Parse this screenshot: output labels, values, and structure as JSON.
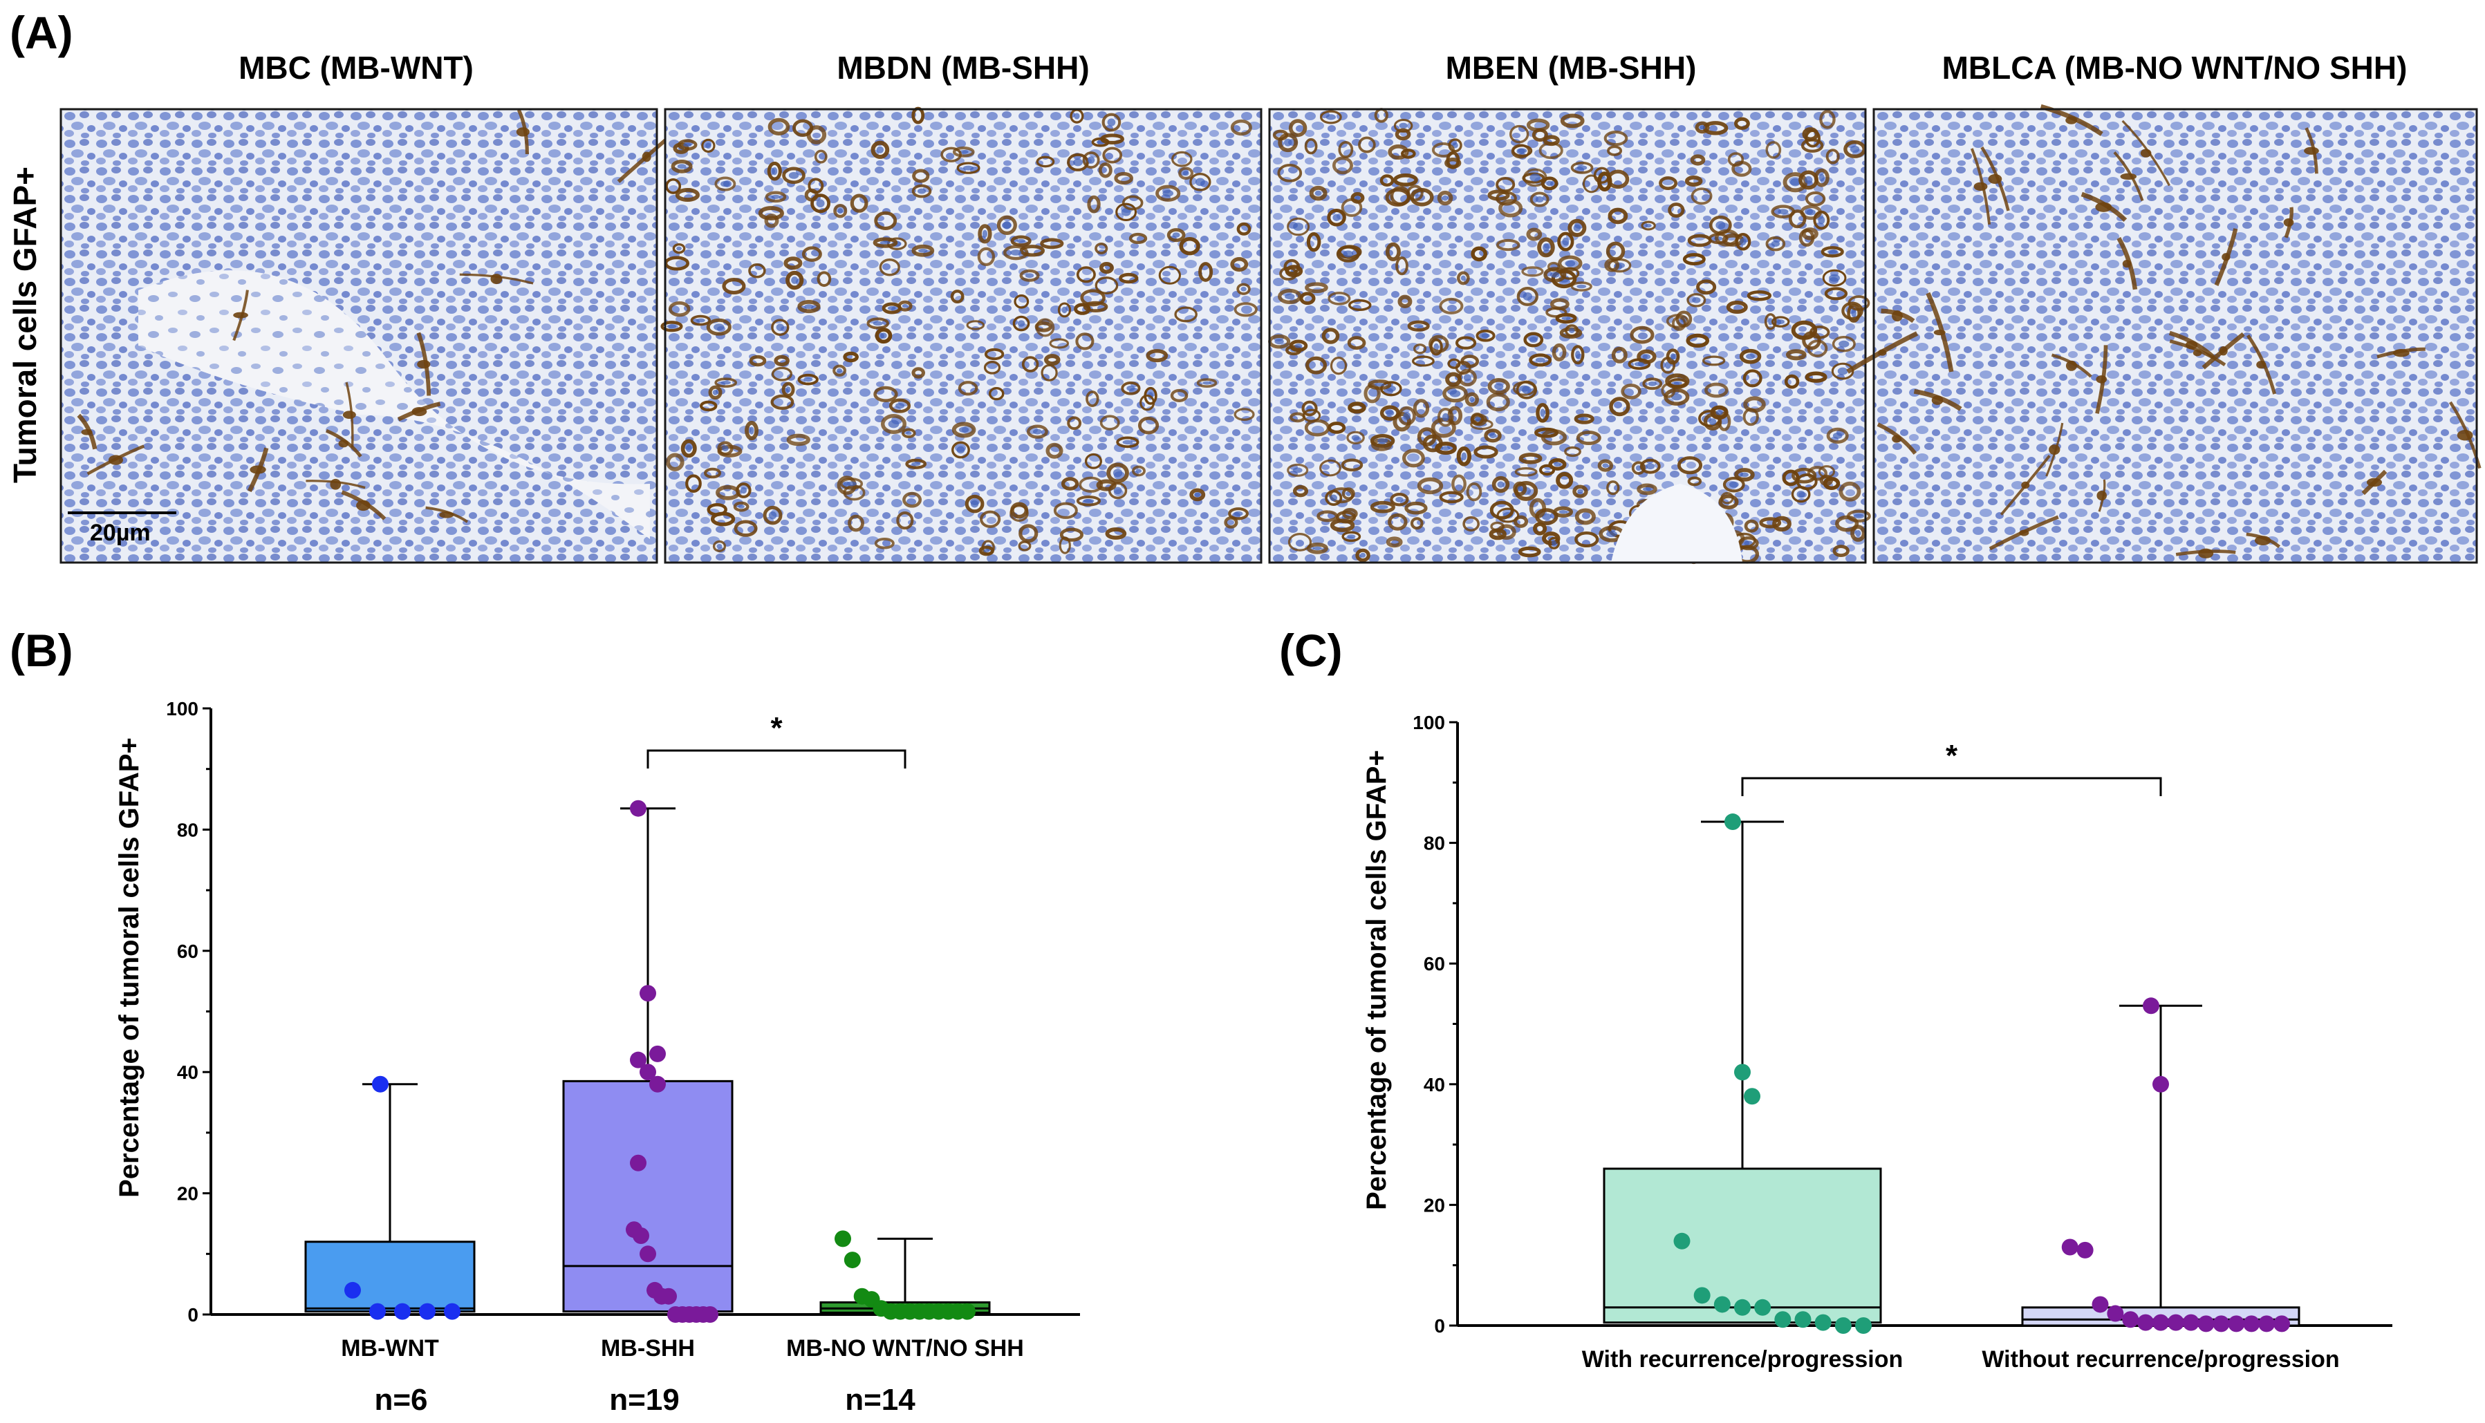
{
  "figure": {
    "panel_a": {
      "letter": "(A)",
      "row_label": "Tumoral cells GFAP+",
      "scale_bar": "20µm",
      "images": [
        {
          "title": "MBC (MB-WNT)",
          "staining": "sparse"
        },
        {
          "title": "MBDN (MB-SHH)",
          "staining": "dense"
        },
        {
          "title": "MBEN (MB-SHH)",
          "staining": "very-dense"
        },
        {
          "title": "MBLCA (MB-NO WNT/NO SHH)",
          "staining": "sparse-dendritic"
        }
      ]
    },
    "colors": {
      "background": "#ffffff",
      "tissue_bg": "#e7ebf4",
      "hematoxylin": "#5f78c8",
      "dab_stain": "#6e4310",
      "box_wnt": "#4a9cf0",
      "box_shh": "#8f8cf2",
      "box_nownt": "#2f9a2f",
      "dot_wnt": "#1a2ff0",
      "dot_shh": "#7a1a9a",
      "dot_nownt": "#138a13",
      "box_recur": "#b2e8d4",
      "box_norecur": "#d4d7f6",
      "dot_recur": "#1f9e78",
      "dot_norecur": "#7a1a9a"
    }
  },
  "chart_data": [
    {
      "panel": "(B)",
      "type": "box",
      "title": "",
      "xlabel": "",
      "ylabel": "Percentage of tumoral cells GFAP+",
      "ylim": [
        0,
        100
      ],
      "yticks": [
        "0",
        "20",
        "40",
        "60",
        "80",
        "100"
      ],
      "categories": [
        "MB-WNT",
        "MB-SHH",
        "MB-NO WNT/NO SHH"
      ],
      "sample_sizes": [
        "n=6",
        "n=19",
        "n=14"
      ],
      "boxes": [
        {
          "name": "MB-WNT",
          "min": 0,
          "q1": 0.5,
          "median": 1,
          "q3": 12,
          "max": 38,
          "points": [
            38,
            4,
            0.5,
            0.5,
            0.5,
            0.5
          ]
        },
        {
          "name": "MB-SHH",
          "min": 0,
          "q1": 0.5,
          "median": 8,
          "q3": 38.5,
          "max": 83.5,
          "points": [
            83.5,
            53,
            43,
            42,
            40,
            38,
            25,
            14,
            13,
            10,
            4,
            3,
            3,
            0,
            0,
            0,
            0,
            0,
            0
          ]
        },
        {
          "name": "MB-NO WNT/NO SHH",
          "min": 0,
          "q1": 0.3,
          "median": 1,
          "q3": 2,
          "max": 12.5,
          "points": [
            12.5,
            9,
            3,
            2.5,
            1,
            0.5,
            0.5,
            0.5,
            0.5,
            0.5,
            0.5,
            0.5,
            0.5,
            0.5
          ]
        }
      ],
      "significance": [
        {
          "from": "MB-SHH",
          "to": "MB-NO WNT/NO SHH",
          "label": "*"
        }
      ]
    },
    {
      "panel": "(C)",
      "type": "box",
      "title": "",
      "xlabel": "",
      "ylabel": "Percentage of tumoral cells GFAP+",
      "ylim": [
        0,
        100
      ],
      "yticks": [
        "0",
        "20",
        "40",
        "60",
        "80",
        "100"
      ],
      "categories": [
        "With recurrence/progression",
        "Without recurrence/progression"
      ],
      "boxes": [
        {
          "name": "With recurrence/progression",
          "min": 0,
          "q1": 0.5,
          "median": 3,
          "q3": 26,
          "max": 83.5,
          "points": [
            83.5,
            42,
            38,
            14,
            5,
            3.5,
            3,
            3,
            1,
            1,
            0.5,
            0,
            0
          ]
        },
        {
          "name": "Without recurrence/progression",
          "min": 0,
          "q1": 0,
          "median": 1,
          "q3": 3,
          "max": 53,
          "points": [
            53,
            40,
            13,
            12.5,
            3.5,
            2,
            1,
            0.5,
            0.5,
            0.5,
            0.5,
            0.3,
            0.3,
            0.3,
            0.3,
            0.3,
            0.3
          ]
        }
      ],
      "significance": [
        {
          "from": "With recurrence/progression",
          "to": "Without recurrence/progression",
          "label": "*"
        }
      ]
    }
  ]
}
